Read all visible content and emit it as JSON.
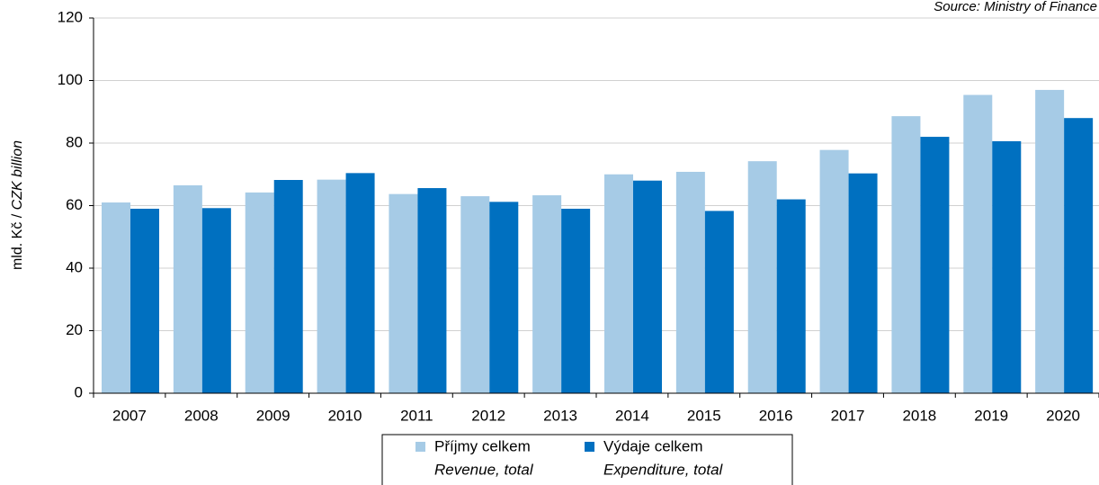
{
  "chart_data": {
    "type": "bar",
    "source": "Source: Ministry of Finance",
    "ylabel": "mld. Kč / ",
    "ylabel_en": "CZK billion",
    "categories": [
      "2007",
      "2008",
      "2009",
      "2010",
      "2011",
      "2012",
      "2013",
      "2014",
      "2015",
      "2016",
      "2017",
      "2018",
      "2019",
      "2020"
    ],
    "series": [
      {
        "name": "Příjmy celkem",
        "name_en": "Revenue, total",
        "color": "#a6cbe6",
        "values": [
          61,
          66.5,
          64.2,
          68.3,
          63.7,
          63,
          63.3,
          70,
          70.8,
          74.2,
          77.8,
          88.6,
          95.4,
          97
        ]
      },
      {
        "name": "Výdaje celkem",
        "name_en": "Expenditure, total",
        "color": "#0070c0",
        "values": [
          59,
          59.2,
          68.2,
          70.4,
          65.6,
          61.2,
          59,
          68,
          58.3,
          62,
          70.3,
          82,
          80.6,
          88
        ]
      }
    ],
    "ylim": [
      0,
      120
    ],
    "yticks": [
      0,
      20,
      40,
      60,
      80,
      100,
      120
    ],
    "grid": true
  }
}
